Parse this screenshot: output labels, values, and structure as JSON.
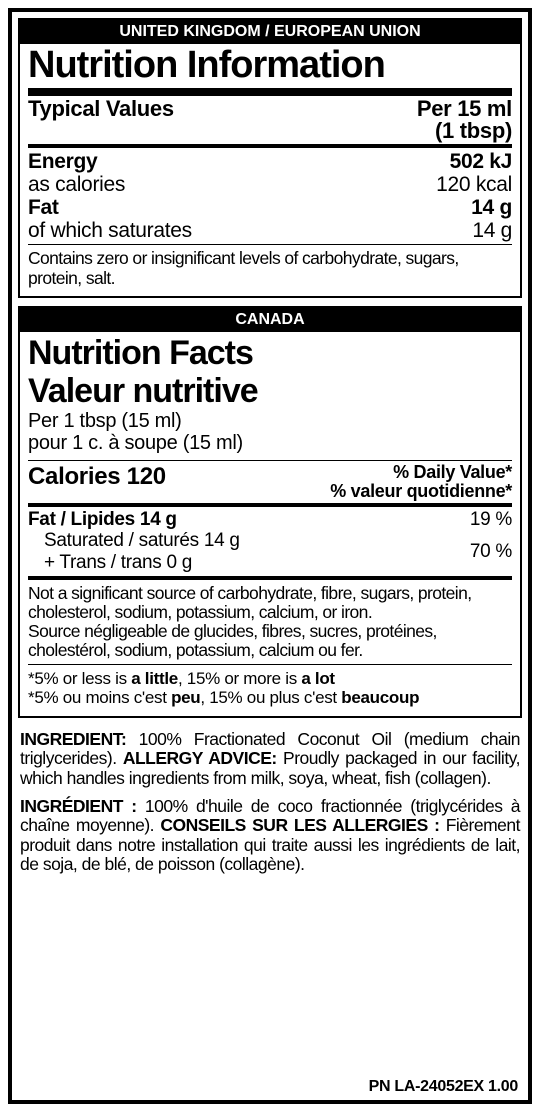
{
  "uk": {
    "header": "UNITED KINGDOM / EUROPEAN UNION",
    "title": "Nutrition Information",
    "typical_label": "Typical Values",
    "serving_line1": "Per 15 ml",
    "serving_line2": "(1 tbsp)",
    "energy_label": "Energy",
    "energy_kj": "502 kJ",
    "calories_label": "as calories",
    "calories_val": "120 kcal",
    "fat_label": "Fat",
    "fat_val": "14 g",
    "sat_label": "of which saturates",
    "sat_val": "14 g",
    "note": "Contains zero or insignificant levels of carbohydrate, sugars, protein, salt."
  },
  "ca": {
    "header": "CANADA",
    "title_en": "Nutrition Facts",
    "title_fr": "Valeur nutritive",
    "per_en": "Per 1 tbsp (15 ml)",
    "per_fr": "pour 1 c. à soupe (15 ml)",
    "calories": "Calories 120",
    "dv_en": "% Daily Value*",
    "dv_fr": "% valeur quotidienne*",
    "fat_label": "Fat / Lipides 14 g",
    "fat_dv": "19 %",
    "sat_label": "Saturated / saturés 14 g",
    "trans_label": "+ Trans / trans 0 g",
    "sat_dv": "70 %",
    "note_en": "Not a significant source of carbohydrate, fibre, sugars, protein, cholesterol, sodium, potassium, calcium, or iron.",
    "note_fr": "Source négligeable de glucides, fibres, sucres, protéines, cholestérol, sodium, potassium, calcium ou fer.",
    "star_en_pre": "*5% or less is ",
    "star_en_b1": "a little",
    "star_en_mid": ", 15% or more is ",
    "star_en_b2": "a lot",
    "star_fr_pre": "*5% ou moins c'est ",
    "star_fr_b1": "peu",
    "star_fr_mid": ", 15% ou plus c'est ",
    "star_fr_b2": "beaucoup"
  },
  "ing": {
    "en_ing_h": "INGREDIENT:",
    "en_ing": " 100% Fractionated Coconut Oil (medium chain triglycerides). ",
    "en_all_h": "ALLERGY ADVICE:",
    "en_all": " Proudly packaged in our facility, which handles ingredients from milk, soya, wheat, fish (collagen).",
    "fr_ing_h": "INGRÉDIENT :",
    "fr_ing": " 100% d'huile de coco fractionnée (triglycérides à chaîne moyenne). ",
    "fr_all_h": "CONSEILS SUR LES ALLERGIES :",
    "fr_all": " Fièrement produit dans notre installation qui traite aussi les ingrédients de lait, de soja, de blé, de poisson (collagène)."
  },
  "pn": "PN LA-24052EX 1.00"
}
